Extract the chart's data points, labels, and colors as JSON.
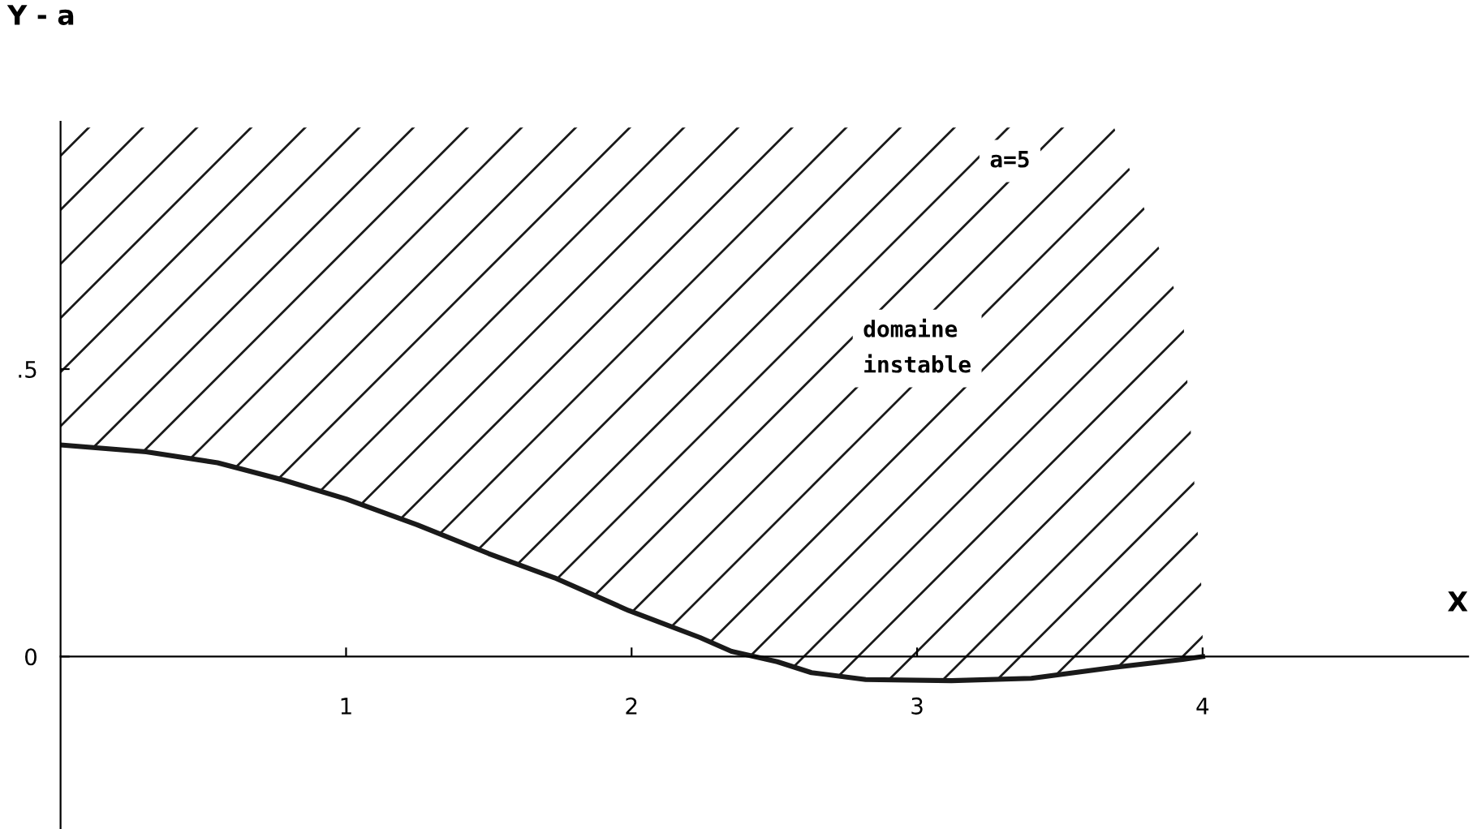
{
  "chart_data": {
    "type": "line",
    "xlabel": "X",
    "ylabel": "Y - a",
    "x": [
      0,
      0.3,
      0.55,
      0.78,
      1.0,
      1.25,
      1.5,
      1.73,
      1.99,
      2.24,
      2.35,
      2.51,
      2.63,
      2.82,
      3.12,
      3.4,
      3.69,
      3.93,
      4.0
    ],
    "series": [
      {
        "color": "#1a1a1a",
        "values": [
          0.368,
          0.356,
          0.337,
          0.307,
          0.274,
          0.229,
          0.179,
          0.137,
          0.08,
          0.033,
          0.009,
          -0.009,
          -0.028,
          -0.04,
          -0.042,
          -0.038,
          -0.019,
          -0.005,
          0.0
        ],
        "lower": [
          0.368,
          0.356,
          0.337,
          0.307,
          0.274,
          0.229,
          0.179,
          0.137,
          0.08,
          0.033,
          0.009,
          -0.009,
          -0.028,
          -0.04,
          -0.042,
          -0.038,
          -0.019,
          -0.005,
          0.0
        ],
        "upper": [
          0.92,
          0.92,
          0.92,
          0.92,
          0.92,
          0.92,
          0.92,
          0.92,
          0.92,
          0.92,
          0.92,
          0.92,
          0.92,
          0.92,
          0.92,
          0.92,
          0.92,
          0.6,
          0.09
        ]
      }
    ],
    "xlim": [
      0,
      4.93
    ],
    "ylim": [
      -0.3,
      0.93
    ],
    "xticks": [
      1,
      2,
      3,
      4
    ],
    "yticks": [
      0,
      {
        "value": 0.5,
        "label": ".5"
      }
    ],
    "annotations": [
      "a=5",
      "domaine\ninstable"
    ],
    "grid": false,
    "legend": false,
    "marker": "none",
    "line_style": "solid"
  }
}
